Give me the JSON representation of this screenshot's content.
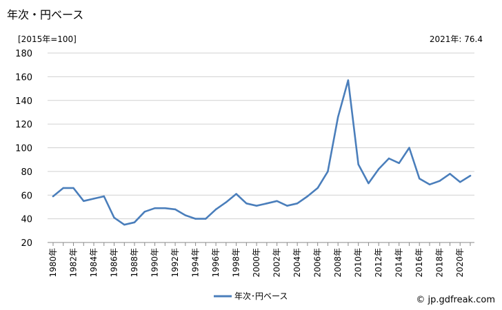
{
  "title": "年次・円ベース",
  "unit_label": "[2015年=100]",
  "annotation": "2021年: 76.4",
  "source": "© jp.gdfreak.com",
  "legend_label": "年次･円ベース",
  "series_color": "#4a7ebb",
  "chart_data": {
    "type": "line",
    "title": "年次・円ベース",
    "ylabel": "[2015年=100]",
    "ylim": [
      20,
      180
    ],
    "yticks": [
      20,
      40,
      60,
      80,
      100,
      120,
      140,
      160,
      180
    ],
    "x": [
      1980,
      1981,
      1982,
      1983,
      1984,
      1985,
      1986,
      1987,
      1988,
      1989,
      1990,
      1991,
      1992,
      1993,
      1994,
      1995,
      1996,
      1997,
      1998,
      1999,
      2000,
      2001,
      2002,
      2003,
      2004,
      2005,
      2006,
      2007,
      2008,
      2009,
      2010,
      2011,
      2012,
      2013,
      2014,
      2015,
      2016,
      2017,
      2018,
      2019,
      2020,
      2021
    ],
    "xtick_labels": [
      "1980年",
      "1982年",
      "1984年",
      "1986年",
      "1988年",
      "1990年",
      "1992年",
      "1994年",
      "1996年",
      "1998年",
      "2000年",
      "2002年",
      "2004年",
      "2006年",
      "2008年",
      "2010年",
      "2012年",
      "2014年",
      "2016年",
      "2018年",
      "2020年"
    ],
    "series": [
      {
        "name": "年次･円ベース",
        "values": [
          59,
          66,
          66,
          55,
          57,
          59,
          41,
          35,
          37,
          46,
          49,
          49,
          48,
          43,
          40,
          40,
          48,
          54,
          61,
          53,
          51,
          53,
          55,
          51,
          53,
          59,
          66,
          80,
          126,
          157,
          86,
          70,
          82,
          91,
          87,
          100,
          74,
          69,
          72,
          78,
          71,
          76.4
        ]
      }
    ],
    "grid": "horizontal",
    "legend": "bottom-center"
  }
}
